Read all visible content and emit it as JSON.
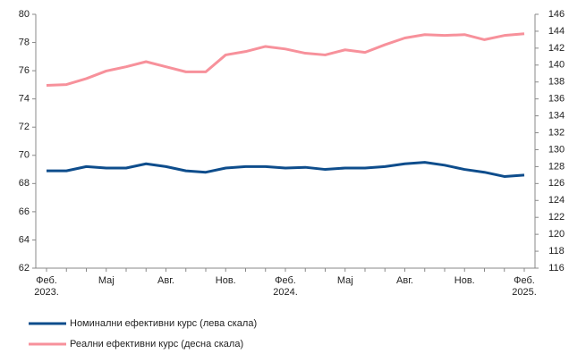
{
  "chart_data": {
    "type": "line",
    "categories": [
      "Феб.\n2023.",
      null,
      null,
      "Мај",
      null,
      null,
      "Авг.",
      null,
      null,
      "Нов.",
      null,
      null,
      "Феб.\n2024.",
      null,
      null,
      "Мај",
      null,
      null,
      "Авг.",
      null,
      null,
      "Нов.",
      null,
      null,
      "Феб.\n2025."
    ],
    "series": [
      {
        "name": "Номинални ефективни курс (лева скала)",
        "color": "#0e4d8c",
        "values": [
          68.9,
          68.9,
          69.2,
          69.1,
          69.1,
          69.4,
          69.2,
          68.9,
          68.8,
          69.1,
          69.2,
          69.2,
          69.1,
          69.15,
          69.0,
          69.1,
          69.1,
          69.2,
          69.4,
          69.5,
          69.3,
          69.0,
          68.8,
          68.5,
          68.6
        ]
      },
      {
        "name": "Реални ефективни курс (десна скала)",
        "color": "#f7919b",
        "axis": "y2",
        "values": [
          137.6,
          137.7,
          138.4,
          139.3,
          139.8,
          140.4,
          139.8,
          139.2,
          139.2,
          141.2,
          141.6,
          142.2,
          141.9,
          141.4,
          141.2,
          141.8,
          141.5,
          142.4,
          143.2,
          143.6,
          143.5,
          143.6,
          143.0,
          143.5,
          143.7
        ]
      }
    ],
    "ylim": [
      62,
      80
    ],
    "yticks": [
      62,
      64,
      66,
      68,
      70,
      72,
      74,
      76,
      78,
      80
    ],
    "y2lim": [
      116,
      146
    ],
    "y2ticks": [
      116,
      118,
      120,
      122,
      124,
      126,
      128,
      130,
      132,
      134,
      136,
      138,
      140,
      142,
      144,
      146
    ]
  }
}
